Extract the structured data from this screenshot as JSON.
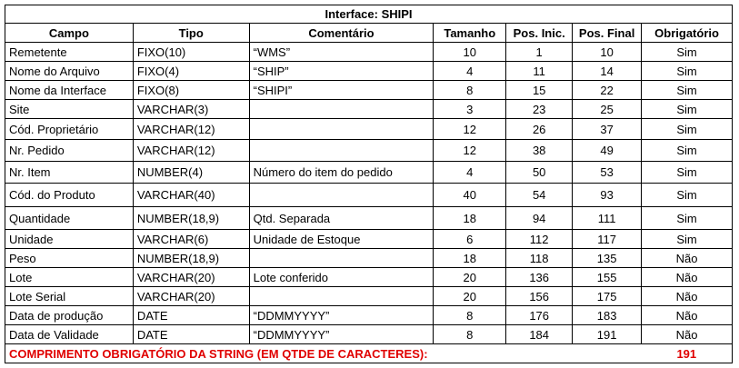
{
  "title": "Interface: SHIPI",
  "headers": {
    "campo": "Campo",
    "tipo": "Tipo",
    "comentario": "Comentário",
    "tamanho": "Tamanho",
    "pos_inic": "Pos. Inic.",
    "pos_final": "Pos. Final",
    "obrigatorio": "Obrigatório"
  },
  "rows": [
    {
      "campo": "Remetente",
      "tipo": "FIXO(10)",
      "comentario": "“WMS”",
      "tamanho": "10",
      "pos_inic": "1",
      "pos_final": "10",
      "obrigatorio": "Sim"
    },
    {
      "campo": "Nome do Arquivo",
      "tipo": "FIXO(4)",
      "comentario": "“SHIP”",
      "tamanho": "4",
      "pos_inic": "11",
      "pos_final": "14",
      "obrigatorio": "Sim"
    },
    {
      "campo": "Nome da Interface",
      "tipo": "FIXO(8)",
      "comentario": "“SHIPI”",
      "tamanho": "8",
      "pos_inic": "15",
      "pos_final": "22",
      "obrigatorio": "Sim"
    },
    {
      "campo": "Site",
      "tipo": "VARCHAR(3)",
      "comentario": "",
      "tamanho": "3",
      "pos_inic": "23",
      "pos_final": "25",
      "obrigatorio": "Sim"
    },
    {
      "campo": "Cód. Proprietário",
      "tipo": "VARCHAR(12)",
      "comentario": "",
      "tamanho": "12",
      "pos_inic": "26",
      "pos_final": "37",
      "obrigatorio": "Sim"
    },
    {
      "campo": "Nr. Pedido",
      "tipo": "VARCHAR(12)",
      "comentario": "",
      "tamanho": "12",
      "pos_inic": "38",
      "pos_final": "49",
      "obrigatorio": "Sim"
    },
    {
      "campo": "Nr. Item",
      "tipo": "NUMBER(4)",
      "comentario": "Número do item do pedido",
      "tamanho": "4",
      "pos_inic": "50",
      "pos_final": "53",
      "obrigatorio": "Sim"
    },
    {
      "campo": "Cód. do Produto",
      "tipo": "VARCHAR(40)",
      "comentario": "",
      "tamanho": "40",
      "pos_inic": "54",
      "pos_final": "93",
      "obrigatorio": "Sim"
    },
    {
      "campo": "Quantidade",
      "tipo": "NUMBER(18,9)",
      "comentario": "Qtd. Separada",
      "tamanho": "18",
      "pos_inic": "94",
      "pos_final": "111",
      "obrigatorio": "Sim"
    },
    {
      "campo": "Unidade",
      "tipo": "VARCHAR(6)",
      "comentario": "Unidade de Estoque",
      "tamanho": "6",
      "pos_inic": "112",
      "pos_final": "117",
      "obrigatorio": "Sim"
    },
    {
      "campo": "Peso",
      "tipo": "NUMBER(18,9)",
      "comentario": "",
      "tamanho": "18",
      "pos_inic": "118",
      "pos_final": "135",
      "obrigatorio": "Não"
    },
    {
      "campo": "Lote",
      "tipo": "VARCHAR(20)",
      "comentario": "Lote conferido",
      "tamanho": "20",
      "pos_inic": "136",
      "pos_final": "155",
      "obrigatorio": "Não"
    },
    {
      "campo": "Lote Serial",
      "tipo": "VARCHAR(20)",
      "comentario": "",
      "tamanho": "20",
      "pos_inic": "156",
      "pos_final": "175",
      "obrigatorio": "Não"
    },
    {
      "campo": "Data de produção",
      "tipo": "DATE",
      "comentario": "“DDMMYYYY”",
      "tamanho": "8",
      "pos_inic": "176",
      "pos_final": "183",
      "obrigatorio": "Não"
    },
    {
      "campo": "Data de Validade",
      "tipo": "DATE",
      "comentario": "“DDMMYYYY”",
      "tamanho": "8",
      "pos_inic": "184",
      "pos_final": "191",
      "obrigatorio": "Não"
    }
  ],
  "footer": {
    "label": "COMPRIMENTO OBRIGATÓRIO DA STRING (EM QTDE DE CARACTERES):",
    "total": "191"
  },
  "colors": {
    "footer_text": "#e00000",
    "border": "#000000"
  }
}
